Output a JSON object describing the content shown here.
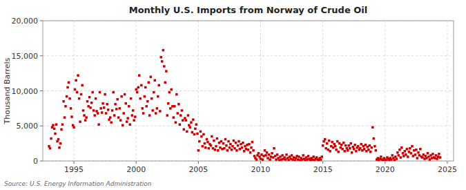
{
  "chart_data": {
    "type": "scatter",
    "title": "Monthly U.S. Imports from Norway of Crude Oil",
    "ylabel": "Thousand Barrels",
    "source": "Source: U.S. Energy Information Administration",
    "color": "#cc0000",
    "marker": "square",
    "grid": true,
    "xlim": [
      1992.5,
      2025.5
    ],
    "xticks": [
      1995,
      2000,
      2005,
      2010,
      2015,
      2020,
      2025
    ],
    "ylim": [
      0,
      20000
    ],
    "yticks": [
      0,
      {
        "value": 5000,
        "label": "5,000"
      },
      {
        "value": 10000,
        "label": "10,000"
      },
      {
        "value": 15000,
        "label": "15,000"
      },
      {
        "value": 20000,
        "label": "20,000"
      }
    ],
    "x": [
      1993.0,
      1993.08,
      1993.17,
      1993.25,
      1993.33,
      1993.42,
      1993.5,
      1993.58,
      1993.67,
      1993.75,
      1993.83,
      1993.92,
      1994.0,
      1994.08,
      1994.17,
      1994.25,
      1994.33,
      1994.42,
      1994.5,
      1994.58,
      1994.67,
      1994.75,
      1994.83,
      1994.92,
      1995.0,
      1995.08,
      1995.17,
      1995.25,
      1995.33,
      1995.42,
      1995.5,
      1995.58,
      1995.67,
      1995.75,
      1995.83,
      1995.92,
      1996.0,
      1996.08,
      1996.17,
      1996.25,
      1996.33,
      1996.42,
      1996.5,
      1996.58,
      1996.67,
      1996.75,
      1996.83,
      1996.92,
      1997.0,
      1997.08,
      1997.17,
      1997.25,
      1997.33,
      1997.42,
      1997.5,
      1997.58,
      1997.67,
      1997.75,
      1997.83,
      1997.92,
      1998.0,
      1998.08,
      1998.17,
      1998.25,
      1998.33,
      1998.42,
      1998.5,
      1998.58,
      1998.67,
      1998.75,
      1998.83,
      1998.92,
      1999.0,
      1999.08,
      1999.17,
      1999.25,
      1999.33,
      1999.42,
      1999.5,
      1999.58,
      1999.67,
      1999.75,
      1999.83,
      1999.92,
      2000.0,
      2000.08,
      2000.17,
      2000.25,
      2000.33,
      2000.42,
      2000.5,
      2000.58,
      2000.67,
      2000.75,
      2000.83,
      2000.92,
      2001.0,
      2001.08,
      2001.17,
      2001.25,
      2001.33,
      2001.42,
      2001.5,
      2001.58,
      2001.67,
      2001.75,
      2001.83,
      2001.92,
      2002.0,
      2002.08,
      2002.17,
      2002.25,
      2002.33,
      2002.42,
      2002.5,
      2002.58,
      2002.67,
      2002.75,
      2002.83,
      2002.92,
      2003.0,
      2003.08,
      2003.17,
      2003.25,
      2003.33,
      2003.42,
      2003.5,
      2003.58,
      2003.67,
      2003.75,
      2003.83,
      2003.92,
      2004.0,
      2004.08,
      2004.17,
      2004.25,
      2004.33,
      2004.42,
      2004.5,
      2004.58,
      2004.67,
      2004.75,
      2004.83,
      2004.92,
      2005.0,
      2005.08,
      2005.17,
      2005.25,
      2005.33,
      2005.42,
      2005.5,
      2005.58,
      2005.67,
      2005.75,
      2005.83,
      2005.92,
      2006.0,
      2006.08,
      2006.17,
      2006.25,
      2006.33,
      2006.42,
      2006.5,
      2006.58,
      2006.67,
      2006.75,
      2006.83,
      2006.92,
      2007.0,
      2007.08,
      2007.17,
      2007.25,
      2007.33,
      2007.42,
      2007.5,
      2007.58,
      2007.67,
      2007.75,
      2007.83,
      2007.92,
      2008.0,
      2008.08,
      2008.17,
      2008.25,
      2008.33,
      2008.42,
      2008.5,
      2008.58,
      2008.67,
      2008.75,
      2008.83,
      2008.92,
      2009.0,
      2009.08,
      2009.17,
      2009.25,
      2009.33,
      2009.42,
      2009.5,
      2009.58,
      2009.67,
      2009.75,
      2009.83,
      2009.92,
      2010.0,
      2010.08,
      2010.17,
      2010.25,
      2010.33,
      2010.42,
      2010.5,
      2010.58,
      2010.67,
      2010.75,
      2010.83,
      2010.92,
      2011.0,
      2011.08,
      2011.17,
      2011.25,
      2011.33,
      2011.42,
      2011.5,
      2011.58,
      2011.67,
      2011.75,
      2011.83,
      2011.92,
      2012.0,
      2012.08,
      2012.17,
      2012.25,
      2012.33,
      2012.42,
      2012.5,
      2012.58,
      2012.67,
      2012.75,
      2012.83,
      2012.92,
      2013.0,
      2013.08,
      2013.17,
      2013.25,
      2013.33,
      2013.42,
      2013.5,
      2013.58,
      2013.67,
      2013.75,
      2013.83,
      2013.92,
      2014.0,
      2014.08,
      2014.17,
      2014.25,
      2014.33,
      2014.42,
      2014.5,
      2014.58,
      2014.67,
      2014.75,
      2014.83,
      2014.92,
      2015.0,
      2015.08,
      2015.17,
      2015.25,
      2015.33,
      2015.42,
      2015.5,
      2015.58,
      2015.67,
      2015.75,
      2015.83,
      2015.92,
      2016.0,
      2016.08,
      2016.17,
      2016.25,
      2016.33,
      2016.42,
      2016.5,
      2016.58,
      2016.67,
      2016.75,
      2016.83,
      2016.92,
      2017.0,
      2017.08,
      2017.17,
      2017.25,
      2017.33,
      2017.42,
      2017.5,
      2017.58,
      2017.67,
      2017.75,
      2017.83,
      2017.92,
      2018.0,
      2018.08,
      2018.17,
      2018.25,
      2018.33,
      2018.42,
      2018.5,
      2018.58,
      2018.67,
      2018.75,
      2018.83,
      2018.92,
      2019.0,
      2019.08,
      2019.17,
      2019.25,
      2019.33,
      2019.42,
      2019.5,
      2019.58,
      2019.67,
      2019.75,
      2019.83,
      2019.92,
      2020.0,
      2020.08,
      2020.17,
      2020.25,
      2020.33,
      2020.42,
      2020.5,
      2020.58,
      2020.67,
      2020.75,
      2020.83,
      2020.92,
      2021.0,
      2021.08,
      2021.17,
      2021.25,
      2021.33,
      2021.42,
      2021.5,
      2021.58,
      2021.67,
      2021.75,
      2021.83,
      2021.92,
      2022.0,
      2022.08,
      2022.17,
      2022.25,
      2022.33,
      2022.42,
      2022.5,
      2022.58,
      2022.67,
      2022.75,
      2022.83,
      2022.92,
      2023.0,
      2023.08,
      2023.17,
      2023.25,
      2023.33,
      2023.42,
      2023.5,
      2023.58,
      2023.67,
      2023.75,
      2023.83,
      2023.92,
      2024.0,
      2024.08,
      2024.17,
      2024.25,
      2024.33,
      2024.42
    ],
    "values": [
      2100,
      1800,
      3200,
      4800,
      5100,
      4600,
      3900,
      5200,
      2800,
      3100,
      1900,
      2500,
      4500,
      5200,
      8500,
      6200,
      7800,
      9200,
      10500,
      11200,
      8900,
      7500,
      6300,
      5100,
      4800,
      10200,
      11500,
      9800,
      12200,
      8900,
      5600,
      9500,
      10800,
      7200,
      6500,
      5800,
      6200,
      8500,
      7800,
      9100,
      7600,
      8300,
      9800,
      7200,
      6500,
      8900,
      7100,
      6800,
      5200,
      9800,
      7500,
      6900,
      8200,
      7600,
      9500,
      6800,
      8100,
      7300,
      5900,
      6200,
      5500,
      7200,
      9800,
      6500,
      8100,
      7400,
      8800,
      6200,
      7500,
      5800,
      9200,
      5100,
      6800,
      9500,
      8200,
      5600,
      6100,
      7800,
      5200,
      8900,
      6500,
      7200,
      5800,
      6300,
      10200,
      9800,
      10500,
      12200,
      8900,
      10800,
      7500,
      6800,
      9200,
      10500,
      7800,
      8500,
      11200,
      6500,
      12000,
      8900,
      7200,
      9800,
      11500,
      6800,
      7500,
      9200,
      10800,
      7100,
      14800,
      14200,
      15800,
      13500,
      11200,
      12800,
      6500,
      8200,
      9800,
      7500,
      10200,
      7800,
      6200,
      7800,
      5500,
      9500,
      6800,
      8100,
      5200,
      6500,
      7200,
      5800,
      4500,
      6100,
      5800,
      4200,
      6500,
      5100,
      4800,
      5500,
      4100,
      5900,
      3800,
      4600,
      5200,
      3900,
      1500,
      2800,
      4200,
      3500,
      2100,
      3800,
      2500,
      1900,
      3100,
      2700,
      1800,
      2400,
      2200,
      3500,
      1800,
      2900,
      1600,
      2100,
      3200,
      1500,
      2600,
      1900,
      2800,
      1700,
      2500,
      1800,
      3100,
      2200,
      1500,
      2800,
      1900,
      2400,
      1600,
      2100,
      2900,
      1800,
      2600,
      1500,
      2200,
      2800,
      1700,
      2400,
      1900,
      2600,
      1400,
      2100,
      1700,
      2300,
      1600,
      2400,
      1200,
      1900,
      2700,
      1500,
      700,
      400,
      200,
      800,
      1100,
      600,
      300,
      900,
      200,
      700,
      1500,
      800,
      1200,
      400,
      900,
      200,
      600,
      1100,
      500,
      1800,
      700,
      200,
      900,
      400,
      100,
      600,
      200,
      800,
      300,
      500,
      200,
      900,
      400,
      100,
      600,
      300,
      800,
      200,
      500,
      100,
      400,
      700,
      200,
      600,
      100,
      400,
      200,
      800,
      300,
      100,
      500,
      200,
      700,
      300,
      100,
      400,
      200,
      600,
      100,
      300,
      500,
      200,
      100,
      400,
      200,
      600,
      2200,
      2800,
      3100,
      1800,
      2500,
      1600,
      2900,
      1400,
      2100,
      2700,
      1900,
      2400,
      2100,
      1600,
      2800,
      1300,
      2500,
      1900,
      2300,
      1700,
      2600,
      1400,
      2200,
      1800,
      1500,
      2200,
      1800,
      2500,
      1200,
      2000,
      1700,
      2300,
      1400,
      1900,
      2100,
      1600,
      1800,
      2400,
      1500,
      2100,
      1700,
      2300,
      1400,
      2000,
      1600,
      2200,
      1300,
      1900,
      4800,
      3200,
      2100,
      1500,
      200,
      400,
      100,
      300,
      600,
      200,
      100,
      400,
      200,
      100,
      500,
      300,
      100,
      400,
      200,
      800,
      400,
      100,
      600,
      300,
      1200,
      800,
      1600,
      500,
      1900,
      1100,
      700,
      1400,
      900,
      1700,
      600,
      1300,
      1800,
      1100,
      2100,
      700,
      1500,
      900,
      1600,
      400,
      1200,
      800,
      1700,
      600,
      500,
      900,
      300,
      700,
      400,
      1100,
      600,
      200,
      800,
      400,
      1000,
      500,
      400,
      800,
      300,
      600,
      1000,
      500
    ]
  }
}
